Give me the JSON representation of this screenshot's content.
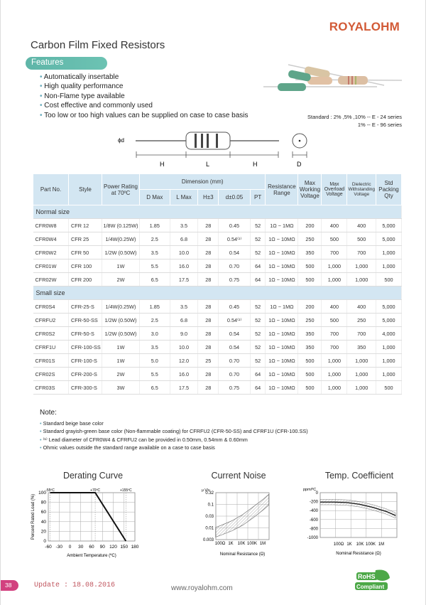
{
  "header": {
    "brand": "ROYALOHM",
    "title": "Carbon Film Fixed Resistors"
  },
  "features": {
    "label": "Features",
    "items": [
      "Automatically insertable",
      "High quality performance",
      "Non-Flame type available",
      "Cost effective and commonly used",
      "Too low or too high values can be supplied on case to case basis"
    ]
  },
  "standard": {
    "line1": "Standard : 2%  ,5%  ,10% -- E - 24 series",
    "line2": "1% -- E - 96 series"
  },
  "diagram": {
    "d_label": "ϕd",
    "H1": "H",
    "L": "L",
    "H2": "H",
    "D": "D"
  },
  "table": {
    "headers": {
      "part": "Part No.",
      "style": "Style",
      "power": "Power Rating at 70ºC",
      "dimension": "Dimension (mm)",
      "dmax": "D Max",
      "lmax": "L Max",
      "h": "H±3",
      "d": "d±0.05",
      "pt": "PT",
      "range": "Resistance Range",
      "mwv": "Max Working Voltage",
      "mov": "Max Overload Voltage",
      "dwv": "Dielectric Withstanding Voltage",
      "qty": "Std Packing Qty"
    },
    "sections": [
      {
        "label": "Normal size",
        "rows": [
          [
            "CFR0W8",
            "CFR 12",
            "1/8W (0.125W)",
            "1.85",
            "3.5",
            "28",
            "0.45",
            "52",
            "1Ω ~ 1MΩ",
            "200",
            "400",
            "400",
            "5,000"
          ],
          [
            "CFR0W4",
            "CFR 25",
            "1/4W(0.25W)",
            "2.5",
            "6.8",
            "28",
            "0.54⁽¹⁾",
            "52",
            "1Ω ~ 10MΩ",
            "250",
            "500",
            "500",
            "5,000"
          ],
          [
            "CFR0W2",
            "CFR 50",
            "1/2W (0.50W)",
            "3.5",
            "10.0",
            "28",
            "0.54",
            "52",
            "1Ω ~ 10MΩ",
            "350",
            "700",
            "700",
            "1,000"
          ],
          [
            "CFR01W",
            "CFR 100",
            "1W",
            "5.5",
            "16.0",
            "28",
            "0.70",
            "64",
            "1Ω ~ 10MΩ",
            "500",
            "1,000",
            "1,000",
            "1,000"
          ],
          [
            "CFR02W",
            "CFR 200",
            "2W",
            "6.5",
            "17.5",
            "28",
            "0.75",
            "64",
            "1Ω ~ 10MΩ",
            "500",
            "1,000",
            "1,000",
            "500"
          ]
        ]
      },
      {
        "label": "Small size",
        "rows": [
          [
            "CFR0S4",
            "CFR-25-S",
            "1/4W(0.25W)",
            "1.85",
            "3.5",
            "28",
            "0.45",
            "52",
            "1Ω ~ 1MΩ",
            "200",
            "400",
            "400",
            "5,000"
          ],
          [
            "CFRFU2",
            "CFR-50-SS",
            "1/2W (0.50W)",
            "2.5",
            "6.8",
            "28",
            "0.54⁽¹⁾",
            "52",
            "1Ω ~ 10MΩ",
            "250",
            "500",
            "250",
            "5,000"
          ],
          [
            "CFR0S2",
            "CFR-50-S",
            "1/2W (0.50W)",
            "3.0",
            "9.0",
            "28",
            "0.54",
            "52",
            "1Ω ~ 10MΩ",
            "350",
            "700",
            "700",
            "4,000"
          ],
          [
            "CFRF1U",
            "CFR-100-SS",
            "1W",
            "3.5",
            "10.0",
            "28",
            "0.54",
            "52",
            "1Ω ~ 10MΩ",
            "350",
            "700",
            "350",
            "1,000"
          ],
          [
            "CFR01S",
            "CFR-100-S",
            "1W",
            "5.0",
            "12.0",
            "25",
            "0.70",
            "52",
            "1Ω ~ 10MΩ",
            "500",
            "1,000",
            "1,000",
            "1,000"
          ],
          [
            "CFR02S",
            "CFR-200-S",
            "2W",
            "5.5",
            "16.0",
            "28",
            "0.70",
            "64",
            "1Ω ~ 10MΩ",
            "500",
            "1,000",
            "1,000",
            "1,000"
          ],
          [
            "CFR03S",
            "CFR-300-S",
            "3W",
            "6.5",
            "17.5",
            "28",
            "0.75",
            "64",
            "1Ω ~ 10MΩ",
            "500",
            "1,000",
            "1,000",
            "500"
          ]
        ]
      }
    ]
  },
  "notes": {
    "title": "Note:",
    "items": [
      "Standard beige base color",
      "Standard grayish-green base color (Non-flammable coating) for CFRFU2 (CFR-50-SS) and CFRF1U (CFR-100.SS)",
      "⁽¹⁾ Lead diameter of CFR0W4 & CFRFU2 can be provided in 0.50mm, 0.54mm & 0.60mm",
      "Ohmic values outside the standard range available on a case to case basis"
    ]
  },
  "chart_data": [
    {
      "type": "line",
      "title": "Derating Curve",
      "xlabel": "Ambient Temperature (ºC)",
      "ylabel": "Percent Rated Load (%)",
      "xlim": [
        -60,
        180
      ],
      "ylim": [
        0,
        100
      ],
      "xticks": [
        "-60",
        "-30",
        "0",
        "30",
        "60",
        "90",
        "120",
        "150",
        "180"
      ],
      "yticks": [
        "0",
        "20",
        "40",
        "60",
        "80",
        "100"
      ],
      "annotations": [
        "-55ºC",
        "+70ºC",
        "+155ºC"
      ],
      "grid": true,
      "x": [
        -55,
        70,
        155
      ],
      "y": [
        100,
        100,
        0
      ]
    },
    {
      "type": "area",
      "title": "Current Noise",
      "xlabel": "Nominal Resistance (Ω)",
      "ylabel": "μ V/v",
      "yscale": "log",
      "xscale": "log",
      "xticks": [
        "100Ω",
        "1K",
        "10K",
        "100K",
        "1M"
      ],
      "yticks": [
        "0.003",
        "0.01",
        "0.03",
        "0.1",
        "0.32"
      ],
      "grid": true,
      "bands": [
        {
          "x": [
            30,
            100,
            1000,
            10000,
            100000,
            1000000,
            3000000
          ],
          "lower": [
            0.004,
            0.005,
            0.008,
            0.015,
            0.035,
            0.09,
            0.15
          ],
          "upper": [
            0.012,
            0.015,
            0.025,
            0.05,
            0.12,
            0.3,
            0.5
          ]
        }
      ]
    },
    {
      "type": "area",
      "title": "Temp. Coefficient",
      "xlabel": "Nominal Resistance (Ω)",
      "ylabel": "ppm/ºC",
      "xscale": "log",
      "ylim": [
        -1000,
        0
      ],
      "xticks": [
        "100Ω",
        "1K",
        "10K",
        "100K",
        "1M"
      ],
      "yticks": [
        "0",
        "-200",
        "-400",
        "-600",
        "-800",
        "-1000"
      ],
      "grid": true,
      "x": [
        10,
        100,
        1000,
        10000,
        100000,
        1000000,
        5000000
      ],
      "y": [
        -210,
        -210,
        -220,
        -260,
        -330,
        -420,
        -510
      ],
      "band": 60
    }
  ],
  "footer": {
    "page": "38",
    "update": "Update : 18.08.2016",
    "website": "www.royalohm.com",
    "rohs1": "RoHS",
    "rohs2": "Compliant"
  },
  "colors": {
    "brand": "#d25a36",
    "features": "#5fb5a8",
    "table_header": "#d3e6f2",
    "page_badge": "#d2417f",
    "rohs": "#4ca847"
  }
}
